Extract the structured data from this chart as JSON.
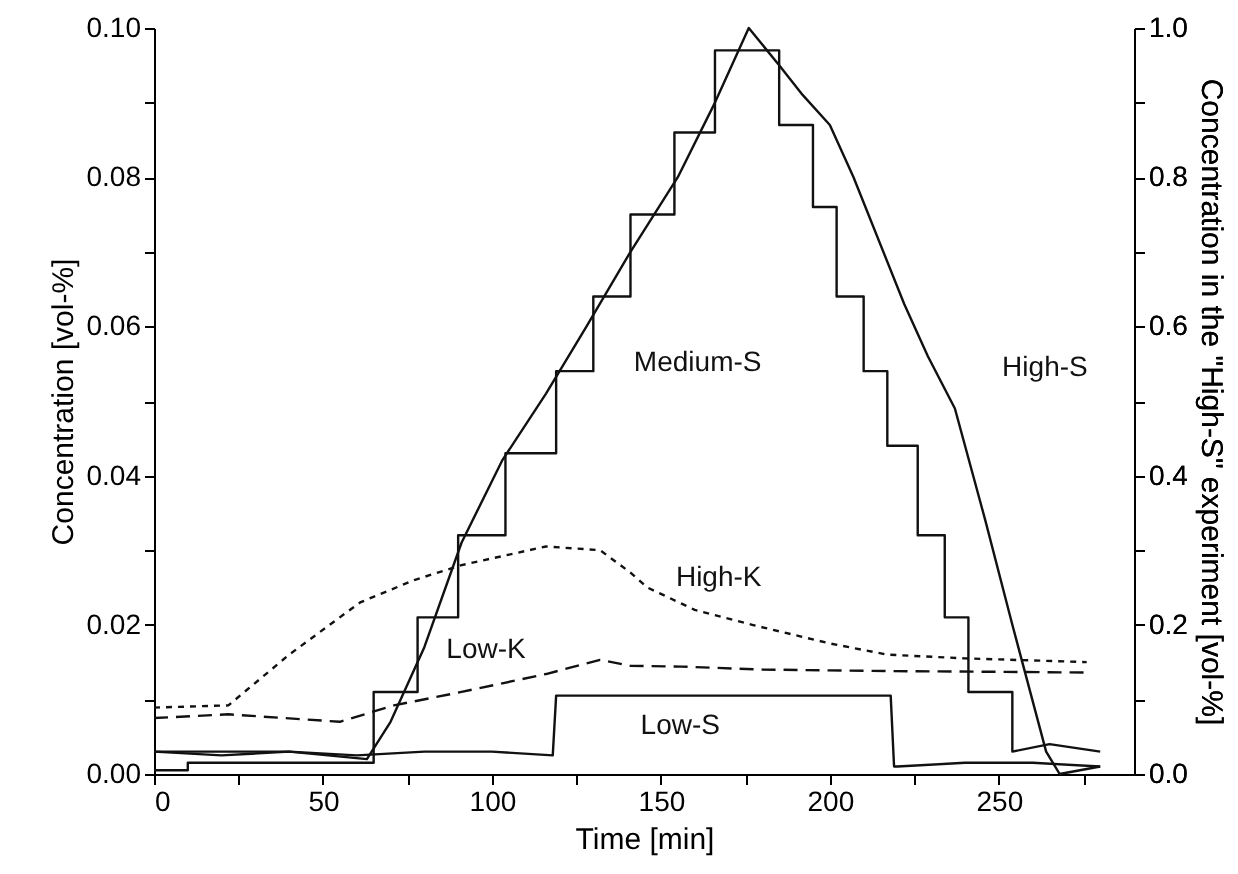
{
  "chart_data": {
    "type": "line",
    "xlabel": "Time [min]",
    "ylabel": "Concentration [vol-%]",
    "y2label": "Concentration in the \"High-S\" experiment [vol-%]",
    "xlim": [
      0,
      290
    ],
    "xticks": [
      0,
      {
        "value": 25,
        "label": null
      },
      50,
      {
        "value": 75,
        "label": null
      },
      100,
      {
        "value": 125,
        "label": null
      },
      150,
      {
        "value": 175,
        "label": null
      },
      200,
      {
        "value": 225,
        "label": null
      },
      250,
      {
        "value": 275,
        "label": null
      }
    ],
    "ylim": [
      0,
      0.1
    ],
    "yticks": [
      {
        "value": 0,
        "label": "0.00"
      },
      {
        "value": 0.01,
        "label": null
      },
      {
        "value": 0.02,
        "label": "0.02"
      },
      {
        "value": 0.03,
        "label": null
      },
      {
        "value": 0.04,
        "label": "0.04"
      },
      {
        "value": 0.05,
        "label": null
      },
      {
        "value": 0.06,
        "label": "0.06"
      },
      {
        "value": 0.07,
        "label": null
      },
      {
        "value": 0.08,
        "label": "0.08"
      },
      {
        "value": 0.09,
        "label": null
      },
      {
        "value": 0.1,
        "label": "0.10"
      }
    ],
    "y2lim": [
      0,
      1.0
    ],
    "y2ticks": [
      {
        "value": 0,
        "label": "0.0"
      },
      {
        "value": 0.1,
        "label": null
      },
      {
        "value": 0.2,
        "label": "0.2"
      },
      {
        "value": 0.3,
        "label": null
      },
      {
        "value": 0.4,
        "label": "0.4"
      },
      {
        "value": 0.5,
        "label": null
      },
      {
        "value": 0.6,
        "label": "0.6"
      },
      {
        "value": 0.7,
        "label": null
      },
      {
        "value": 0.8,
        "label": "0.8"
      },
      {
        "value": 0.9,
        "label": null
      },
      {
        "value": 1.0,
        "label": "1.0"
      }
    ],
    "marker": "none",
    "series": [
      {
        "name": "Medium-S",
        "color": "#111111",
        "line_style": "solid",
        "x": [
          0,
          10,
          10,
          65,
          65,
          78,
          78,
          90,
          90,
          104,
          104,
          119,
          119,
          130,
          130,
          141,
          141,
          154,
          154,
          166,
          166,
          185,
          185,
          195,
          195,
          202,
          202,
          210,
          210,
          217,
          217,
          226,
          226,
          234,
          234,
          241,
          241,
          254,
          254,
          265,
          280
        ],
        "values": [
          0.0005,
          0.0005,
          0.0015,
          0.0015,
          0.011,
          0.011,
          0.021,
          0.021,
          0.032,
          0.032,
          0.043,
          0.043,
          0.054,
          0.054,
          0.064,
          0.064,
          0.075,
          0.075,
          0.086,
          0.086,
          0.097,
          0.097,
          0.087,
          0.087,
          0.076,
          0.076,
          0.064,
          0.064,
          0.054,
          0.054,
          0.044,
          0.044,
          0.032,
          0.032,
          0.021,
          0.021,
          0.011,
          0.011,
          0.003,
          0.004,
          0.003
        ]
      },
      {
        "name": "High-S",
        "color": "#111111",
        "line_style": "solid",
        "axis": "y2",
        "x": [
          0,
          20,
          40,
          63,
          70,
          80,
          91,
          103,
          116,
          128,
          141,
          155,
          166,
          176,
          185,
          192,
          200,
          207,
          222,
          229,
          237,
          246,
          254,
          264,
          268,
          280
        ],
        "values": [
          0.03,
          0.03,
          0.03,
          0.02,
          0.07,
          0.17,
          0.31,
          0.42,
          0.51,
          0.6,
          0.7,
          0.8,
          0.9,
          1.0,
          0.95,
          0.91,
          0.87,
          0.8,
          0.63,
          0.56,
          0.49,
          0.34,
          0.2,
          0.03,
          0.0,
          0.01
        ]
      },
      {
        "name": "Low-S",
        "color": "#111111",
        "line_style": "solid",
        "x": [
          0,
          20,
          40,
          60,
          80,
          100,
          118,
          119,
          120,
          140,
          160,
          180,
          200,
          218,
          219,
          220,
          240,
          260,
          280
        ],
        "values": [
          0.003,
          0.0025,
          0.003,
          0.0025,
          0.003,
          0.003,
          0.0025,
          0.0105,
          0.0105,
          0.0105,
          0.0105,
          0.0105,
          0.0105,
          0.0105,
          0.001,
          0.001,
          0.0015,
          0.0015,
          0.001
        ]
      },
      {
        "name": "High-K",
        "color": "#111111",
        "line_style": "dotted",
        "x": [
          0,
          22,
          40,
          61,
          77,
          91,
          116,
          132,
          141,
          146,
          160,
          177,
          200,
          217,
          240,
          276
        ],
        "values": [
          0.0089,
          0.0092,
          0.016,
          0.023,
          0.026,
          0.028,
          0.0305,
          0.03,
          0.027,
          0.025,
          0.022,
          0.02,
          0.0175,
          0.016,
          0.0155,
          0.015
        ]
      },
      {
        "name": "Low-K",
        "color": "#111111",
        "line_style": "dashed",
        "x": [
          0,
          22,
          55,
          71,
          91,
          116,
          132,
          141,
          156,
          180,
          217,
          250,
          276
        ],
        "values": [
          0.0075,
          0.008,
          0.007,
          0.0092,
          0.011,
          0.0134,
          0.0153,
          0.0145,
          0.0144,
          0.014,
          0.0138,
          0.0137,
          0.0136
        ]
      }
    ]
  }
}
